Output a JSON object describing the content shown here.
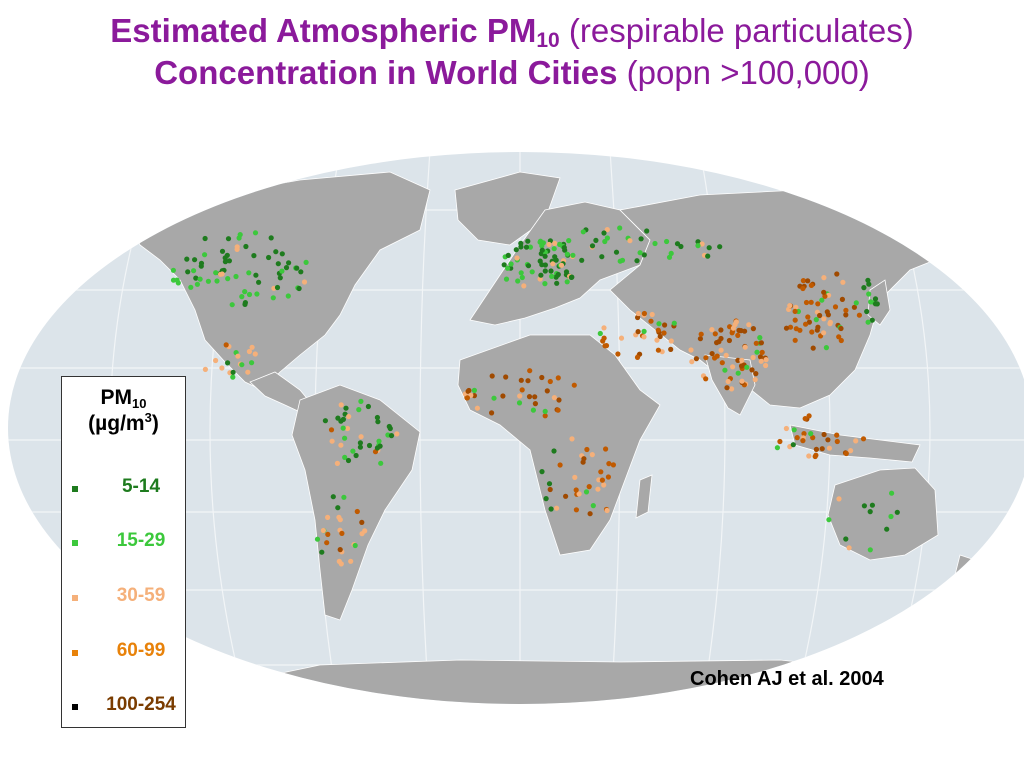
{
  "title": {
    "line1_bold": "Estimated Atmospheric PM",
    "line1_sub": "10",
    "line1_normal": " (respirable particulates)",
    "line2_bold": "Concentration in World Cities",
    "line2_normal": " (popn >100,000)"
  },
  "legend": {
    "title_main": "PM",
    "title_sub": "10",
    "unit_prefix": "(µg/m",
    "unit_sup": "3",
    "unit_suffix": ")",
    "items": [
      {
        "label": "5-14",
        "color": "#1E7B1E"
      },
      {
        "label": "15-29",
        "color": "#3CC83C"
      },
      {
        "label": "30-59",
        "color": "#F5B07A"
      },
      {
        "label": "60-99",
        "color": "#E8820A"
      },
      {
        "label": "100-254",
        "color": "#7A3C00"
      }
    ]
  },
  "citation": "Cohen AJ et al. 2004",
  "colors": {
    "ocean": "#DCE4EA",
    "land": "#A8A8A8",
    "graticule": "#F2F5F7",
    "title": "#8B1A9B"
  }
}
